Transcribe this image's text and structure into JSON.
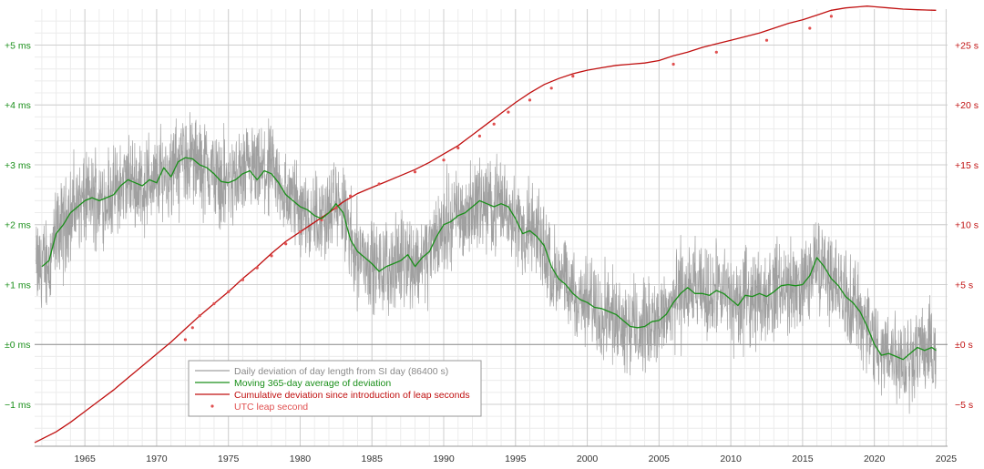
{
  "chart_data": {
    "type": "line",
    "title": "",
    "xlabel": "",
    "ylabel_left": "",
    "ylabel_right": "",
    "xlim": [
      1961.5,
      2025.1
    ],
    "ylim_left_ms": [
      -1.7,
      5.6
    ],
    "ylim_right_s": [
      -8.5,
      28.0
    ],
    "grid": true,
    "legend_position": "bottom-center",
    "x_ticks": [
      {
        "value": 1965,
        "label": "1965"
      },
      {
        "value": 1970,
        "label": "1970"
      },
      {
        "value": 1975,
        "label": "1975"
      },
      {
        "value": 1980,
        "label": "1980"
      },
      {
        "value": 1985,
        "label": "1985"
      },
      {
        "value": 1990,
        "label": "1990"
      },
      {
        "value": 1995,
        "label": "1995"
      },
      {
        "value": 2000,
        "label": "2000"
      },
      {
        "value": 2005,
        "label": "2005"
      },
      {
        "value": 2010,
        "label": "2010"
      },
      {
        "value": 2015,
        "label": "2015"
      },
      {
        "value": 2020,
        "label": "2020"
      },
      {
        "value": 2025,
        "label": "2025"
      }
    ],
    "y_left_ticks": [
      {
        "value": 5,
        "label": "+5 ms"
      },
      {
        "value": 4,
        "label": "+4 ms"
      },
      {
        "value": 3,
        "label": "+3 ms"
      },
      {
        "value": 2,
        "label": "+2 ms"
      },
      {
        "value": 1,
        "label": "+1 ms"
      },
      {
        "value": 0,
        "label": "±0 ms"
      },
      {
        "value": -1,
        "label": "−1 ms"
      }
    ],
    "y_right_ticks": [
      {
        "value": 25,
        "label": "+25 s"
      },
      {
        "value": 20,
        "label": "+20 s"
      },
      {
        "value": 15,
        "label": "+15 s"
      },
      {
        "value": 10,
        "label": "+10 s"
      },
      {
        "value": 5,
        "label": "+5 s"
      },
      {
        "value": 0,
        "label": "±0 s"
      },
      {
        "value": -5,
        "label": "−5 s"
      }
    ],
    "series": [
      {
        "name": "Daily deviation of day length from SI day (86400 s)",
        "axis": "left",
        "color": "#a0a0a0",
        "style": "noisy-band",
        "noise_amplitude_ms": 0.55,
        "note": "daily values scatter around the moving average"
      },
      {
        "name": "Moving 365-day average of deviation",
        "axis": "left",
        "color": "#1a8f1a",
        "x": [
          1962.0,
          1962.5,
          1963.0,
          1963.5,
          1964.0,
          1964.5,
          1965.0,
          1965.5,
          1966.0,
          1966.5,
          1967.0,
          1967.5,
          1968.0,
          1968.5,
          1969.0,
          1969.5,
          1970.0,
          1970.5,
          1971.0,
          1971.5,
          1972.0,
          1972.5,
          1973.0,
          1973.5,
          1974.0,
          1974.5,
          1975.0,
          1975.5,
          1976.0,
          1976.5,
          1977.0,
          1977.5,
          1978.0,
          1978.5,
          1979.0,
          1979.5,
          1980.0,
          1980.5,
          1981.0,
          1981.5,
          1982.0,
          1982.5,
          1983.0,
          1983.5,
          1984.0,
          1984.5,
          1985.0,
          1985.5,
          1986.0,
          1986.5,
          1987.0,
          1987.5,
          1988.0,
          1988.5,
          1989.0,
          1989.5,
          1990.0,
          1990.5,
          1991.0,
          1991.5,
          1992.0,
          1992.5,
          1993.0,
          1993.5,
          1994.0,
          1994.5,
          1995.0,
          1995.5,
          1996.0,
          1996.5,
          1997.0,
          1997.5,
          1998.0,
          1998.5,
          1999.0,
          1999.5,
          2000.0,
          2000.5,
          2001.0,
          2001.5,
          2002.0,
          2002.5,
          2003.0,
          2003.5,
          2004.0,
          2004.5,
          2005.0,
          2005.5,
          2006.0,
          2006.5,
          2007.0,
          2007.5,
          2008.0,
          2008.5,
          2009.0,
          2009.5,
          2010.0,
          2010.5,
          2011.0,
          2011.5,
          2012.0,
          2012.5,
          2013.0,
          2013.5,
          2014.0,
          2014.5,
          2015.0,
          2015.5,
          2016.0,
          2016.5,
          2017.0,
          2017.5,
          2018.0,
          2018.5,
          2019.0,
          2019.5,
          2020.0,
          2020.5,
          2021.0,
          2021.5,
          2022.0,
          2022.5,
          2023.0,
          2023.5,
          2024.0,
          2024.3
        ],
        "values": [
          1.3,
          1.4,
          1.85,
          2.0,
          2.2,
          2.3,
          2.4,
          2.45,
          2.4,
          2.45,
          2.5,
          2.65,
          2.75,
          2.7,
          2.65,
          2.75,
          2.7,
          2.95,
          2.8,
          3.05,
          3.12,
          3.1,
          3.0,
          2.95,
          2.85,
          2.72,
          2.7,
          2.75,
          2.85,
          2.9,
          2.75,
          2.9,
          2.85,
          2.7,
          2.5,
          2.4,
          2.3,
          2.25,
          2.15,
          2.1,
          2.2,
          2.35,
          2.2,
          1.75,
          1.55,
          1.45,
          1.35,
          1.22,
          1.3,
          1.35,
          1.4,
          1.5,
          1.3,
          1.45,
          1.55,
          1.8,
          2.0,
          2.05,
          2.15,
          2.2,
          2.3,
          2.4,
          2.35,
          2.3,
          2.35,
          2.3,
          2.1,
          1.85,
          1.9,
          1.8,
          1.65,
          1.3,
          1.1,
          1.0,
          0.85,
          0.75,
          0.7,
          0.62,
          0.6,
          0.55,
          0.5,
          0.4,
          0.3,
          0.28,
          0.3,
          0.38,
          0.4,
          0.5,
          0.7,
          0.85,
          0.95,
          0.85,
          0.85,
          0.82,
          0.9,
          0.85,
          0.75,
          0.65,
          0.82,
          0.8,
          0.85,
          0.8,
          0.88,
          0.98,
          1.0,
          0.98,
          1.0,
          1.15,
          1.45,
          1.3,
          1.1,
          0.98,
          0.8,
          0.7,
          0.55,
          0.3,
          0.0,
          -0.18,
          -0.15,
          -0.2,
          -0.25,
          -0.15,
          -0.05,
          -0.1,
          -0.05,
          -0.1
        ]
      },
      {
        "name": "Cumulative deviation since introduction of leap seconds",
        "axis": "right",
        "color": "#c01010",
        "x": [
          1961.5,
          1962.0,
          1963.0,
          1964.0,
          1965.0,
          1966.0,
          1967.0,
          1968.0,
          1969.0,
          1970.0,
          1971.0,
          1972.0,
          1973.0,
          1974.0,
          1975.0,
          1976.0,
          1977.0,
          1978.0,
          1979.0,
          1980.0,
          1981.0,
          1982.0,
          1983.0,
          1984.0,
          1985.0,
          1986.0,
          1987.0,
          1988.0,
          1989.0,
          1990.0,
          1991.0,
          1992.0,
          1993.0,
          1994.0,
          1995.0,
          1996.0,
          1997.0,
          1998.0,
          1999.0,
          2000.0,
          2001.0,
          2002.0,
          2003.0,
          2004.0,
          2005.0,
          2006.0,
          2007.0,
          2008.0,
          2009.0,
          2010.0,
          2011.0,
          2012.0,
          2013.0,
          2014.0,
          2015.0,
          2016.0,
          2017.0,
          2018.0,
          2019.0,
          2019.5,
          2020.0,
          2021.0,
          2022.0,
          2023.0,
          2024.3
        ],
        "values": [
          -8.2,
          -7.9,
          -7.3,
          -6.5,
          -5.6,
          -4.7,
          -3.8,
          -2.8,
          -1.8,
          -0.8,
          0.2,
          1.3,
          2.4,
          3.4,
          4.4,
          5.5,
          6.5,
          7.6,
          8.6,
          9.4,
          10.2,
          11.0,
          11.9,
          12.6,
          13.1,
          13.6,
          14.1,
          14.6,
          15.2,
          15.9,
          16.6,
          17.5,
          18.4,
          19.3,
          20.2,
          21.0,
          21.7,
          22.2,
          22.6,
          22.9,
          23.1,
          23.3,
          23.4,
          23.5,
          23.7,
          24.1,
          24.4,
          24.8,
          25.1,
          25.4,
          25.7,
          26.0,
          26.4,
          26.8,
          27.1,
          27.5,
          27.9,
          28.1,
          28.2,
          28.25,
          28.2,
          28.1,
          28.0,
          27.95,
          27.9
        ]
      },
      {
        "name": "UTC leap second",
        "axis": "right",
        "color": "#e05050",
        "style": "markers",
        "x": [
          1972.0,
          1972.5,
          1973.0,
          1974.0,
          1975.0,
          1976.0,
          1977.0,
          1978.0,
          1979.0,
          1980.0,
          1981.5,
          1982.5,
          1983.5,
          1985.5,
          1988.0,
          1990.0,
          1991.0,
          1992.5,
          1993.5,
          1994.5,
          1996.0,
          1997.5,
          1999.0,
          2006.0,
          2009.0,
          2012.5,
          2015.5,
          2017.0
        ],
        "values": [
          1,
          2,
          3,
          4,
          5,
          6,
          7,
          8,
          9,
          10,
          11,
          12,
          13,
          14,
          15,
          16,
          17,
          18,
          19,
          20,
          21,
          22,
          23,
          24,
          25,
          26,
          27,
          28
        ]
      }
    ]
  }
}
